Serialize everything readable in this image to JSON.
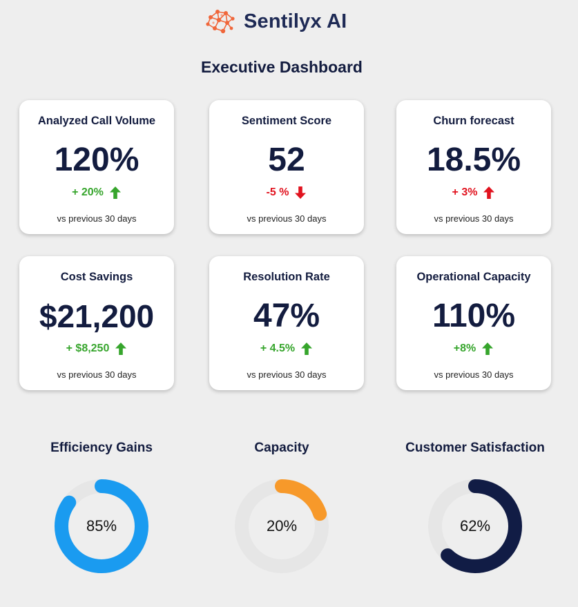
{
  "brand": {
    "name": "Sentilyx AI",
    "logo_icon": "neural-network-icon",
    "logo_color": "#f0663a"
  },
  "title": "Executive Dashboard",
  "colors": {
    "up": "#36a52c",
    "down": "#e1131f",
    "text": "#131c3f"
  },
  "kpis": [
    {
      "title": "Analyzed Call Volume",
      "value": "120%",
      "change": "+ 20%",
      "direction": "up",
      "footnote": "vs previous 30 days"
    },
    {
      "title": "Sentiment Score",
      "value": "52",
      "change": "-5 %",
      "direction": "down",
      "footnote": "vs previous 30 days"
    },
    {
      "title": "Churn forecast",
      "value": "18.5%",
      "change": "+ 3%",
      "direction": "up-bad",
      "footnote": "vs previous 30 days"
    },
    {
      "title": "Cost Savings",
      "value": "$21,200",
      "change": "+ $8,250",
      "direction": "up",
      "footnote": "vs previous 30 days"
    },
    {
      "title": "Resolution Rate",
      "value": "47%",
      "change": "+ 4.5%",
      "direction": "up",
      "footnote": "vs previous 30 days"
    },
    {
      "title": "Operational Capacity",
      "value": "110%",
      "change": "+8%",
      "direction": "up",
      "footnote": "vs previous 30 days"
    }
  ],
  "gauges": [
    {
      "title": "Efficiency Gains",
      "value": 85,
      "label": "85%",
      "color": "#1a9bf0",
      "track": "#e6e6e6"
    },
    {
      "title": "Capacity",
      "value": 20,
      "label": "20%",
      "color": "#f7992a",
      "track": "#e6e6e6"
    },
    {
      "title": "Customer Satisfaction",
      "value": 62,
      "label": "62%",
      "color": "#111c45",
      "track": "#e6e6e6"
    }
  ]
}
